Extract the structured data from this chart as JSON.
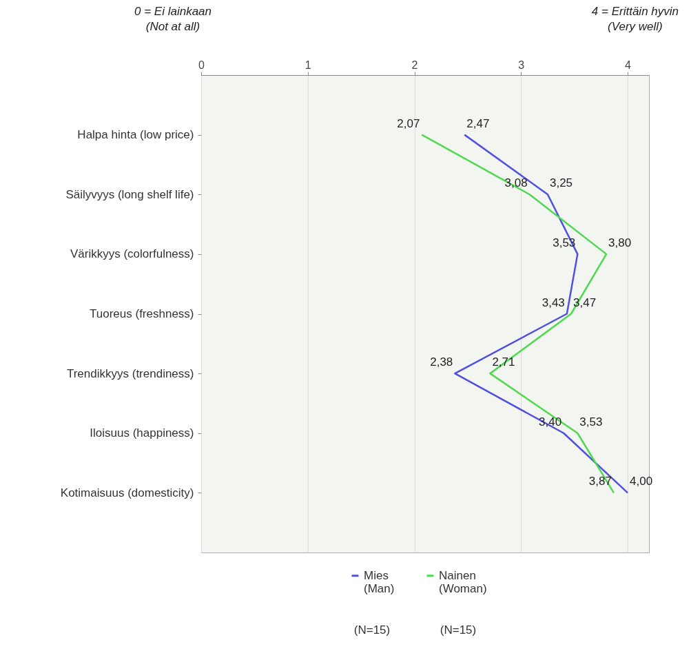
{
  "chart_data": {
    "type": "line",
    "orientation": "horizontal",
    "categories": [
      "Halpa hinta (low price)",
      "Säilyvyys (long shelf life)",
      "Värikkyys (colorfulness)",
      "Tuoreus (freshness)",
      "Trendikkyys (trendiness)",
      "Iloisuus (happiness)",
      "Kotimaisuus (domesticity)"
    ],
    "series": [
      {
        "name": "Mies (Man)",
        "color": "#5050e0",
        "values": [
          2.47,
          3.25,
          3.53,
          3.43,
          2.38,
          3.4,
          4.0
        ],
        "value_labels": [
          "2,47",
          "3,25",
          "3,53",
          "3,43",
          "2,38",
          "3,40",
          "4,00"
        ]
      },
      {
        "name": "Nainen (Woman)",
        "color": "#50d850",
        "values": [
          2.07,
          3.08,
          3.8,
          3.47,
          2.71,
          3.53,
          3.87
        ],
        "value_labels": [
          "2,07",
          "3,08",
          "3,80",
          "3,47",
          "2,71",
          "3,53",
          "3,87"
        ]
      }
    ],
    "xlim": [
      0,
      4.2
    ],
    "xticks": [
      0,
      1,
      2,
      3,
      4
    ],
    "grid": "x",
    "legend": "bottom",
    "marker": "none",
    "line_style": "solid",
    "annotations": [
      "0 = Ei lainkaan (Not at all)",
      "4 = Erittäin hyvin (Very well)",
      "(N=15)",
      "(N=15)"
    ]
  }
}
